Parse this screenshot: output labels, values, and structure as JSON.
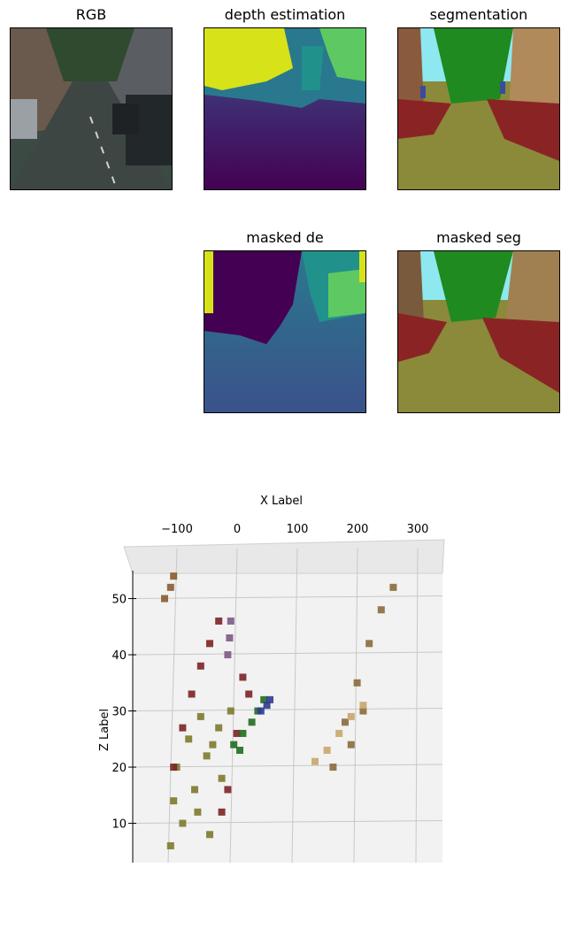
{
  "panels": [
    {
      "title": "RGB"
    },
    {
      "title": "depth estimation"
    },
    {
      "title": "segmentation"
    },
    {
      "title": "masked de"
    },
    {
      "title": "masked seg"
    }
  ],
  "chart_data": {
    "type": "scatter",
    "projection": "3d",
    "title": "",
    "xlabel": "X Label",
    "ylabel": "",
    "zlabel": "Z Label",
    "x_ticks": [
      -100,
      0,
      100,
      200,
      300
    ],
    "z_ticks": [
      10,
      20,
      30,
      40,
      50
    ],
    "xlim": [
      -150,
      330
    ],
    "zlim": [
      3,
      55
    ],
    "grid": true,
    "series": [
      {
        "color": "#7e7a2e",
        "points": [
          [
            -140,
            6
          ],
          [
            -120,
            10
          ],
          [
            -100,
            16
          ],
          [
            -80,
            22
          ],
          [
            -60,
            27
          ],
          [
            -40,
            30
          ],
          [
            -130,
            20
          ],
          [
            -110,
            25
          ],
          [
            -90,
            29
          ],
          [
            -135,
            14
          ],
          [
            -70,
            24
          ],
          [
            -55,
            18
          ],
          [
            -95,
            12
          ],
          [
            -75,
            8
          ]
        ]
      },
      {
        "color": "#7b2424",
        "points": [
          [
            -135,
            20
          ],
          [
            -120,
            27
          ],
          [
            -105,
            33
          ],
          [
            -90,
            38
          ],
          [
            -75,
            42
          ],
          [
            -60,
            46
          ],
          [
            -20,
            36
          ],
          [
            -10,
            33
          ],
          [
            -30,
            26
          ],
          [
            -45,
            16
          ],
          [
            -55,
            12
          ]
        ]
      },
      {
        "color": "#1f6e1f",
        "points": [
          [
            -35,
            24
          ],
          [
            -20,
            26
          ],
          [
            -5,
            28
          ],
          [
            5,
            30
          ],
          [
            15,
            32
          ],
          [
            -25,
            23
          ]
        ]
      },
      {
        "color": "#2e3b8f",
        "points": [
          [
            10,
            30
          ],
          [
            20,
            31
          ],
          [
            25,
            32
          ]
        ]
      },
      {
        "color": "#7c5a86",
        "points": [
          [
            -45,
            40
          ],
          [
            -42,
            43
          ],
          [
            -40,
            46
          ]
        ]
      },
      {
        "color": "#8a6a3c",
        "points": [
          [
            130,
            20
          ],
          [
            150,
            28
          ],
          [
            170,
            35
          ],
          [
            190,
            42
          ],
          [
            210,
            48
          ],
          [
            230,
            52
          ],
          [
            160,
            24
          ],
          [
            180,
            30
          ]
        ]
      },
      {
        "color": "#c8a66a",
        "points": [
          [
            100,
            21
          ],
          [
            120,
            23
          ],
          [
            140,
            26
          ],
          [
            160,
            29
          ],
          [
            180,
            31
          ]
        ]
      },
      {
        "color": "#8a5c2e",
        "points": [
          [
            -150,
            50
          ],
          [
            -140,
            52
          ],
          [
            -135,
            54
          ]
        ]
      }
    ]
  }
}
